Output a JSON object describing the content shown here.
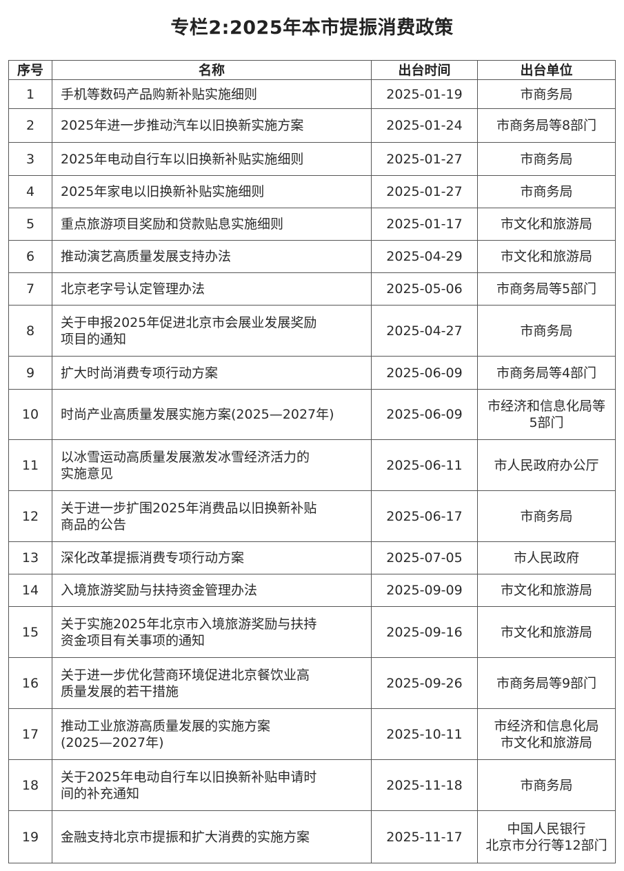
{
  "title": "专栏2:2025年本市提振消费政策",
  "headers": [
    "序号",
    "名称",
    "出台时间",
    "出台单位"
  ],
  "rows": [
    {
      "no": "1",
      "name": [
        "手机等数码产品购新补贴实施细则"
      ],
      "date": "2025-01-19",
      "unit": [
        "市商务局"
      ]
    },
    {
      "no": "2",
      "name": [
        "2025年进一步推动汽车以旧换新实施方案"
      ],
      "date": "2025-01-24",
      "unit": [
        "市商务局等8部门"
      ]
    },
    {
      "no": "3",
      "name": [
        "2025年电动自行车以旧换新补贴实施细则"
      ],
      "date": "2025-01-27",
      "unit": [
        "市商务局"
      ]
    },
    {
      "no": "4",
      "name": [
        "2025年家电以旧换新补贴实施细则"
      ],
      "date": "2025-01-27",
      "unit": [
        "市商务局"
      ]
    },
    {
      "no": "5",
      "name": [
        "重点旅游项目奖励和贷款贴息实施细则"
      ],
      "date": "2025-01-17",
      "unit": [
        "市文化和旅游局"
      ]
    },
    {
      "no": "6",
      "name": [
        "推动演艺高质量发展支持办法"
      ],
      "date": "2025-04-29",
      "unit": [
        "市文化和旅游局"
      ]
    },
    {
      "no": "7",
      "name": [
        "北京老字号认定管理办法"
      ],
      "date": "2025-05-06",
      "unit": [
        "市商务局等5部门"
      ]
    },
    {
      "no": "8",
      "name": [
        "关于申报2025年促进北京市会展业发展奖励",
        "项目的通知"
      ],
      "date": "2025-04-27",
      "unit": [
        "市商务局"
      ]
    },
    {
      "no": "9",
      "name": [
        "扩大时尚消费专项行动方案"
      ],
      "date": "2025-06-09",
      "unit": [
        "市商务局等4部门"
      ]
    },
    {
      "no": "10",
      "name": [
        "时尚产业高质量发展实施方案(2025—2027年)"
      ],
      "date": "2025-06-09",
      "unit": [
        "市经济和信息化局等",
        "5部门"
      ]
    },
    {
      "no": "11",
      "name": [
        "以冰雪运动高质量发展激发冰雪经济活力的",
        "实施意见"
      ],
      "date": "2025-06-11",
      "unit": [
        "市人民政府办公厅"
      ]
    },
    {
      "no": "12",
      "name": [
        "关于进一步扩围2025年消费品以旧换新补贴",
        "商品的公告"
      ],
      "date": "2025-06-17",
      "unit": [
        "市商务局"
      ]
    },
    {
      "no": "13",
      "name": [
        "深化改革提振消费专项行动方案"
      ],
      "date": "2025-07-05",
      "unit": [
        "市人民政府"
      ]
    },
    {
      "no": "14",
      "name": [
        "入境旅游奖励与扶持资金管理办法"
      ],
      "date": "2025-09-09",
      "unit": [
        "市文化和旅游局"
      ]
    },
    {
      "no": "15",
      "name": [
        "关于实施2025年北京市入境旅游奖励与扶持",
        "资金项目有关事项的通知"
      ],
      "date": "2025-09-16",
      "unit": [
        "市文化和旅游局"
      ]
    },
    {
      "no": "16",
      "name": [
        "关于进一步优化营商环境促进北京餐饮业高",
        "质量发展的若干措施"
      ],
      "date": "2025-09-26",
      "unit": [
        "市商务局等9部门"
      ]
    },
    {
      "no": "17",
      "name": [
        "推动工业旅游高质量发展的实施方案",
        "(2025—2027年)"
      ],
      "date": "2025-10-11",
      "unit": [
        "市经济和信息化局",
        "市文化和旅游局"
      ]
    },
    {
      "no": "18",
      "name": [
        "关于2025年电动自行车以旧换新补贴申请时",
        "间的补充通知"
      ],
      "date": "2025-11-18",
      "unit": [
        "市商务局"
      ]
    },
    {
      "no": "19",
      "name": [
        "金融支持北京市提振和扩大消费的实施方案"
      ],
      "date": "2025-11-17",
      "unit": [
        "中国人民银行",
        "北京市分行等12部门"
      ]
    }
  ]
}
